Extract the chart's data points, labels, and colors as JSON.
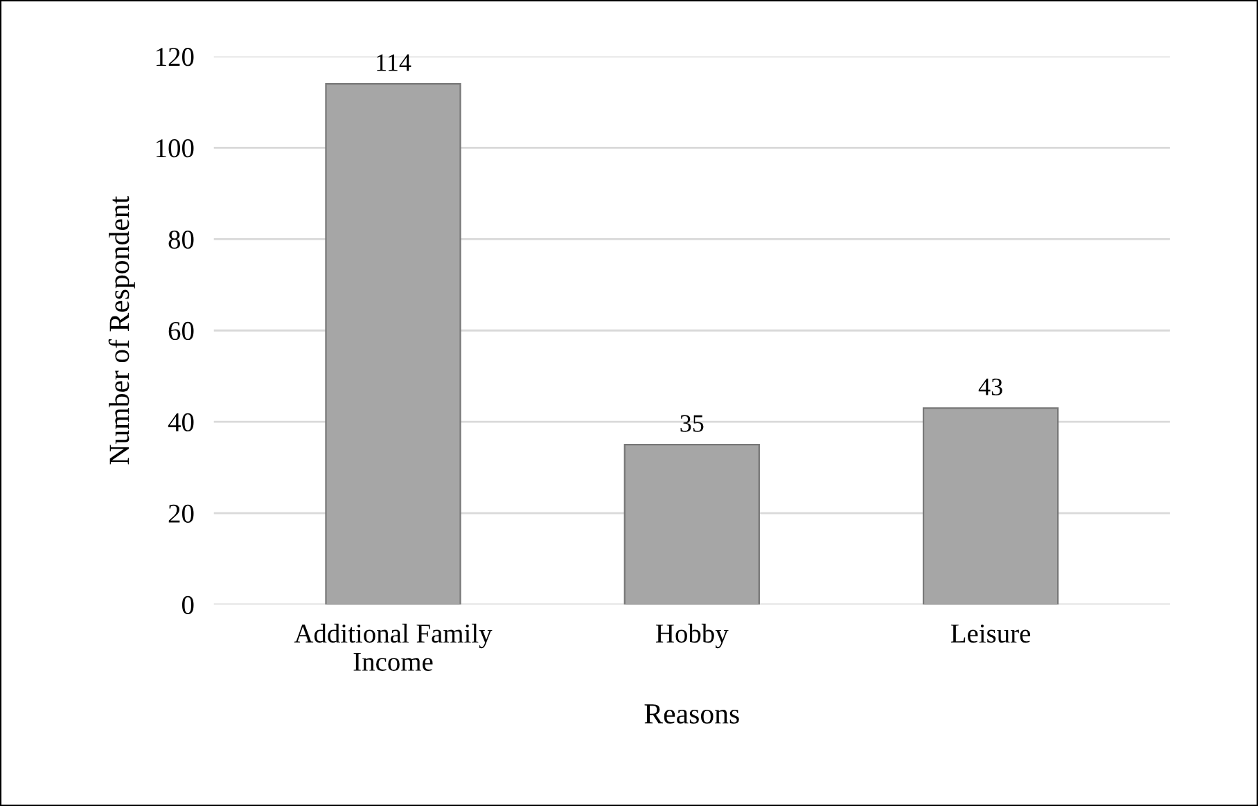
{
  "chart_data": {
    "type": "bar",
    "xlabel": "Reasons",
    "ylabel": "Number of Respondent",
    "categories": [
      "Additional Family\nIncome",
      "Hobby",
      "Leisure"
    ],
    "values": [
      114,
      35,
      43
    ],
    "color": "#a6a6a6",
    "ylim": [
      0,
      120
    ],
    "yticks": [
      0,
      20,
      40,
      60,
      80,
      100,
      120
    ],
    "grid": "y",
    "data_labels": true
  }
}
